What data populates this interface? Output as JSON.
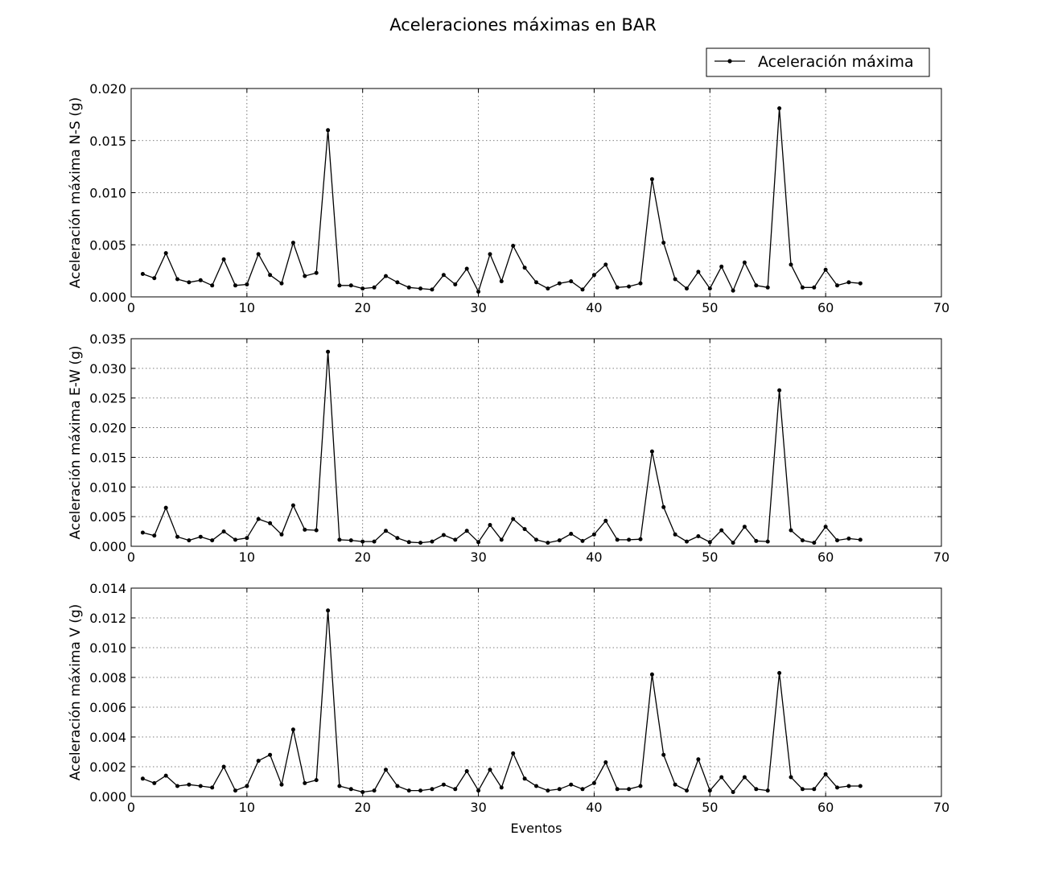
{
  "figure": {
    "title": "Aceleraciones máximas en BAR",
    "legend": {
      "label": "Aceleración máxima",
      "position": "top-right"
    }
  },
  "chart_data": [
    {
      "type": "line",
      "ylabel": "Aceleración máxima N-S (g)",
      "xlabel": "",
      "xlim": [
        0,
        70
      ],
      "ylim": [
        0,
        0.02
      ],
      "xticks": [
        "0",
        "10",
        "20",
        "30",
        "40",
        "50",
        "60",
        "70"
      ],
      "yticks": [
        "0.000",
        "0.005",
        "0.010",
        "0.015",
        "0.020"
      ],
      "grid": true,
      "series": [
        {
          "name": "Aceleración máxima",
          "x": [
            1,
            2,
            3,
            4,
            5,
            6,
            7,
            8,
            9,
            10,
            11,
            12,
            13,
            14,
            15,
            16,
            17,
            18,
            19,
            20,
            21,
            22,
            23,
            24,
            25,
            26,
            27,
            28,
            29,
            30,
            31,
            32,
            33,
            34,
            35,
            36,
            37,
            38,
            39,
            40,
            41,
            42,
            43,
            44,
            45,
            46,
            47,
            48,
            49,
            50,
            51,
            52,
            53,
            54,
            55,
            56,
            57,
            58,
            59,
            60,
            61,
            62,
            63
          ],
          "values": [
            0.0022,
            0.0018,
            0.0042,
            0.0017,
            0.0014,
            0.0016,
            0.0011,
            0.0036,
            0.0011,
            0.0012,
            0.0041,
            0.0021,
            0.0013,
            0.0052,
            0.002,
            0.0023,
            0.016,
            0.0011,
            0.0011,
            0.0008,
            0.0009,
            0.002,
            0.0014,
            0.0009,
            0.0008,
            0.0007,
            0.0021,
            0.0012,
            0.0027,
            0.0005,
            0.0041,
            0.0015,
            0.0049,
            0.0028,
            0.0014,
            0.0008,
            0.0013,
            0.0015,
            0.0007,
            0.0021,
            0.0031,
            0.0009,
            0.001,
            0.0013,
            0.0113,
            0.0052,
            0.0017,
            0.0008,
            0.0024,
            0.0008,
            0.0029,
            0.0006,
            0.0033,
            0.0011,
            0.0009,
            0.0181,
            0.0031,
            0.0009,
            0.0009,
            0.0026,
            0.0011,
            0.0014,
            0.0013
          ]
        }
      ]
    },
    {
      "type": "line",
      "ylabel": "Aceleración máxima E-W (g)",
      "xlabel": "",
      "xlim": [
        0,
        70
      ],
      "ylim": [
        0,
        0.035
      ],
      "xticks": [
        "0",
        "10",
        "20",
        "30",
        "40",
        "50",
        "60",
        "70"
      ],
      "yticks": [
        "0.000",
        "0.005",
        "0.010",
        "0.015",
        "0.020",
        "0.025",
        "0.030",
        "0.035"
      ],
      "grid": true,
      "series": [
        {
          "name": "Aceleración máxima",
          "x": [
            1,
            2,
            3,
            4,
            5,
            6,
            7,
            8,
            9,
            10,
            11,
            12,
            13,
            14,
            15,
            16,
            17,
            18,
            19,
            20,
            21,
            22,
            23,
            24,
            25,
            26,
            27,
            28,
            29,
            30,
            31,
            32,
            33,
            34,
            35,
            36,
            37,
            38,
            39,
            40,
            41,
            42,
            43,
            44,
            45,
            46,
            47,
            48,
            49,
            50,
            51,
            52,
            53,
            54,
            55,
            56,
            57,
            58,
            59,
            60,
            61,
            62,
            63
          ],
          "values": [
            0.0023,
            0.0018,
            0.0065,
            0.0016,
            0.001,
            0.0016,
            0.001,
            0.0025,
            0.0011,
            0.0014,
            0.0046,
            0.0039,
            0.002,
            0.0069,
            0.0028,
            0.0027,
            0.0328,
            0.0011,
            0.001,
            0.0008,
            0.0008,
            0.0026,
            0.0014,
            0.0007,
            0.0006,
            0.0008,
            0.0019,
            0.0011,
            0.0026,
            0.0007,
            0.0036,
            0.0011,
            0.0046,
            0.0029,
            0.0011,
            0.0006,
            0.001,
            0.0021,
            0.0009,
            0.002,
            0.0043,
            0.0011,
            0.0011,
            0.0012,
            0.016,
            0.0066,
            0.002,
            0.0008,
            0.0017,
            0.0007,
            0.0027,
            0.0006,
            0.0033,
            0.0009,
            0.0008,
            0.0263,
            0.0027,
            0.001,
            0.0006,
            0.0033,
            0.001,
            0.0013,
            0.0011
          ]
        }
      ]
    },
    {
      "type": "line",
      "ylabel": "Aceleración máxima V (g)",
      "xlabel": "Eventos",
      "xlim": [
        0,
        70
      ],
      "ylim": [
        0,
        0.014
      ],
      "xticks": [
        "0",
        "10",
        "20",
        "30",
        "40",
        "50",
        "60",
        "70"
      ],
      "yticks": [
        "0.000",
        "0.002",
        "0.004",
        "0.006",
        "0.008",
        "0.010",
        "0.012",
        "0.014"
      ],
      "grid": true,
      "series": [
        {
          "name": "Aceleración máxima",
          "x": [
            1,
            2,
            3,
            4,
            5,
            6,
            7,
            8,
            9,
            10,
            11,
            12,
            13,
            14,
            15,
            16,
            17,
            18,
            19,
            20,
            21,
            22,
            23,
            24,
            25,
            26,
            27,
            28,
            29,
            30,
            31,
            32,
            33,
            34,
            35,
            36,
            37,
            38,
            39,
            40,
            41,
            42,
            43,
            44,
            45,
            46,
            47,
            48,
            49,
            50,
            51,
            52,
            53,
            54,
            55,
            56,
            57,
            58,
            59,
            60,
            61,
            62,
            63
          ],
          "values": [
            0.0012,
            0.0009,
            0.0014,
            0.0007,
            0.0008,
            0.0007,
            0.0006,
            0.002,
            0.0004,
            0.0007,
            0.0024,
            0.0028,
            0.0008,
            0.0045,
            0.0009,
            0.0011,
            0.0125,
            0.0007,
            0.0005,
            0.0003,
            0.0004,
            0.0018,
            0.0007,
            0.0004,
            0.0004,
            0.0005,
            0.0008,
            0.0005,
            0.0017,
            0.0004,
            0.0018,
            0.0006,
            0.0029,
            0.0012,
            0.0007,
            0.0004,
            0.0005,
            0.0008,
            0.0005,
            0.0009,
            0.0023,
            0.0005,
            0.0005,
            0.0007,
            0.0082,
            0.0028,
            0.0008,
            0.0004,
            0.0025,
            0.0004,
            0.0013,
            0.0003,
            0.0013,
            0.0005,
            0.0004,
            0.0083,
            0.0013,
            0.0005,
            0.0005,
            0.0015,
            0.0006,
            0.0007,
            0.0007
          ]
        }
      ]
    }
  ]
}
